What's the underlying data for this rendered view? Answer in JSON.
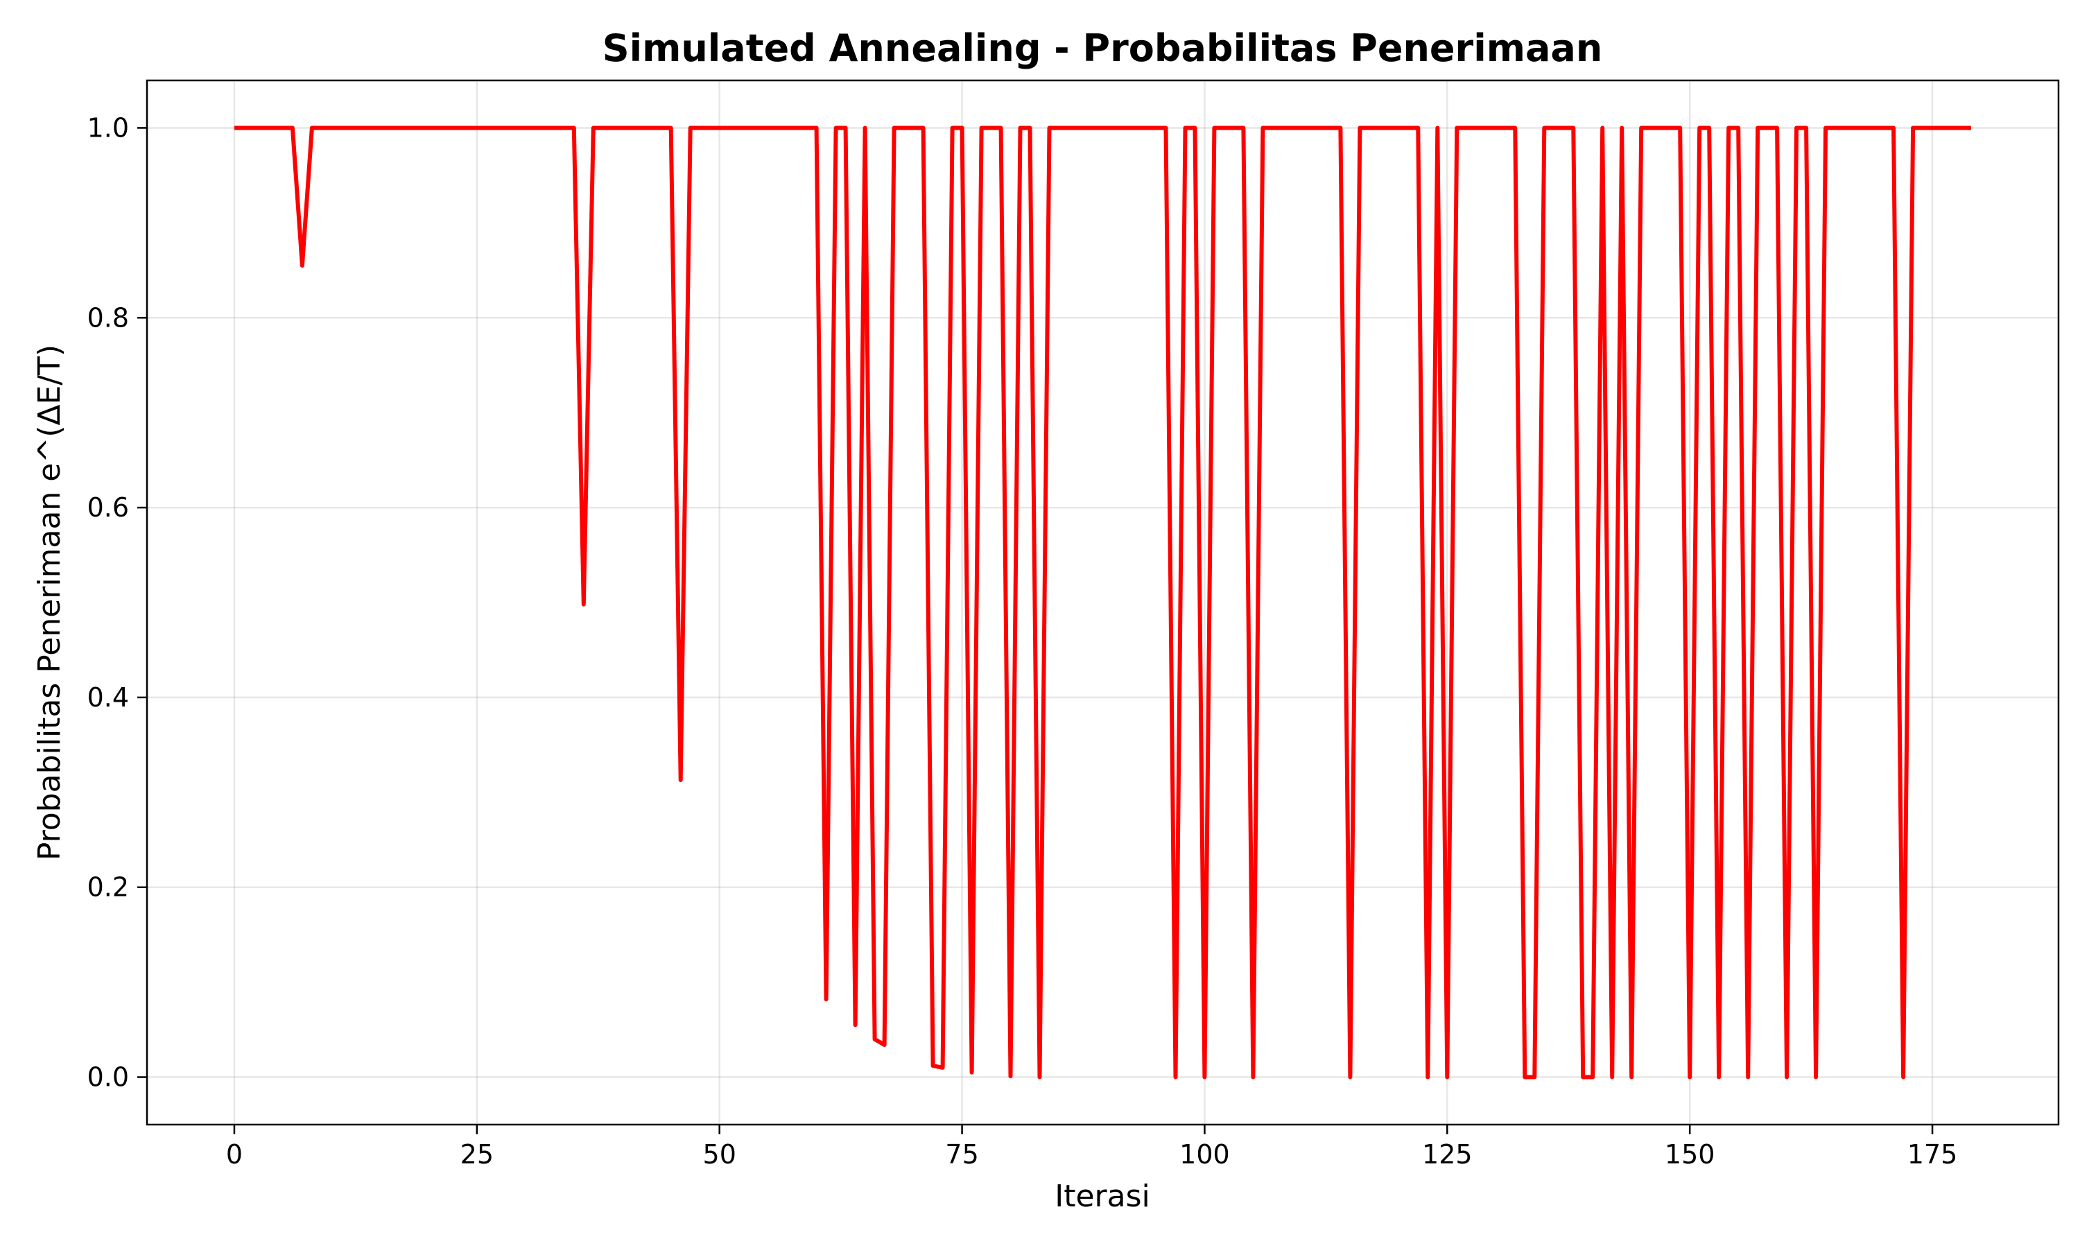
{
  "chart_data": {
    "type": "line",
    "title": "Simulated Annealing - Probabilitas Penerimaan",
    "xlabel": "Iterasi",
    "ylabel": "Probabilitas Penerimaan e^(ΔE/T)",
    "xlim": [
      -9,
      188
    ],
    "ylim": [
      -0.05,
      1.05
    ],
    "xticks": [
      0,
      25,
      50,
      75,
      100,
      125,
      150,
      175
    ],
    "xtick_labels": [
      "0",
      "25",
      "50",
      "75",
      "100",
      "125",
      "150",
      "175"
    ],
    "yticks": [
      0.0,
      0.2,
      0.4,
      0.6,
      0.8,
      1.0
    ],
    "ytick_labels": [
      "0.0",
      "0.2",
      "0.4",
      "0.6",
      "0.8",
      "1.0"
    ],
    "grid": true,
    "color": "#ff0000",
    "series": [
      {
        "x": [
          0,
          6,
          7,
          8,
          35,
          36,
          37,
          45,
          46,
          47,
          60,
          61,
          62,
          63,
          64,
          65,
          66,
          67,
          68,
          71,
          72,
          73,
          74,
          75,
          76,
          77,
          79,
          80,
          81,
          82,
          83,
          84,
          96,
          97,
          98,
          99,
          100,
          101,
          104,
          105,
          106,
          114,
          115,
          116,
          122,
          123,
          124,
          125,
          126,
          132,
          133,
          134,
          135,
          138,
          139,
          140,
          141,
          142,
          143,
          144,
          145,
          149,
          150,
          151,
          152,
          153,
          154,
          155,
          156,
          157,
          159,
          160,
          161,
          162,
          163,
          164,
          171,
          172,
          173,
          179
        ],
        "y": [
          1.0,
          1.0,
          0.855,
          1.0,
          1.0,
          0.498,
          1.0,
          1.0,
          0.313,
          1.0,
          1.0,
          0.082,
          1.0,
          1.0,
          0.055,
          1.0,
          0.04,
          0.034,
          1.0,
          1.0,
          0.012,
          0.01,
          1.0,
          1.0,
          0.005,
          1.0,
          1.0,
          0.001,
          1.0,
          1.0,
          0.0,
          1.0,
          1.0,
          0.0,
          1.0,
          1.0,
          0.0,
          1.0,
          1.0,
          0.0,
          1.0,
          1.0,
          0.0,
          1.0,
          1.0,
          0.0,
          1.0,
          0.0,
          1.0,
          1.0,
          0.0,
          0.0,
          1.0,
          1.0,
          0.0,
          0.0,
          1.0,
          0.0,
          1.0,
          0.0,
          1.0,
          1.0,
          0.0,
          1.0,
          1.0,
          0.0,
          1.0,
          1.0,
          0.0,
          1.0,
          1.0,
          0.0,
          1.0,
          1.0,
          0.0,
          1.0,
          1.0,
          0.0,
          1.0,
          1.0
        ]
      }
    ]
  }
}
